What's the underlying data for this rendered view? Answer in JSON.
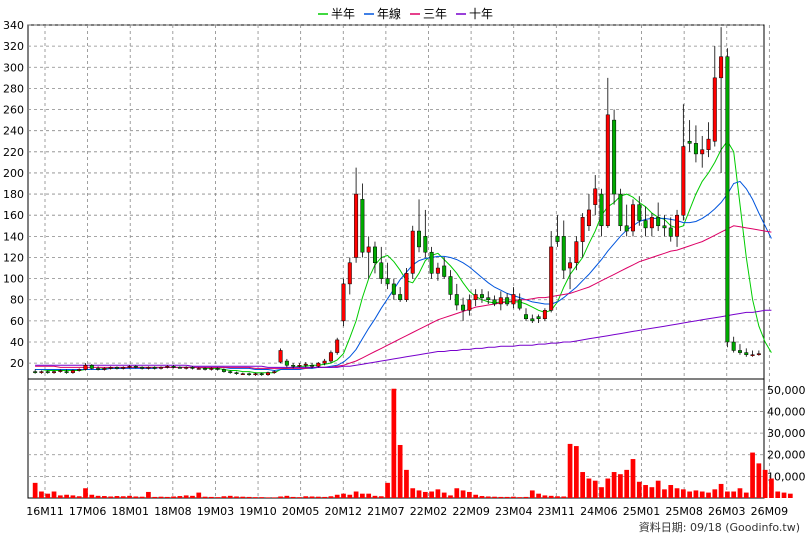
{
  "legend": [
    {
      "label": "半年",
      "color": "#00cc00"
    },
    {
      "label": "年線",
      "color": "#0055dd"
    },
    {
      "label": "三年",
      "color": "#dd0066"
    },
    {
      "label": "十年",
      "color": "#7700cc"
    }
  ],
  "footer": "資料日期: 09/18  (Goodinfo.tw)",
  "colors": {
    "up": "#ff0000",
    "down": "#00aa00",
    "grid": "#888888",
    "volume": "#ff0000"
  },
  "chart_data": {
    "type": "candlestick",
    "x_tick_labels": [
      "16M11",
      "17M06",
      "18M01",
      "18M08",
      "19M03",
      "19M10",
      "20M05",
      "20M12",
      "21M07",
      "22M02",
      "22M09",
      "23M04",
      "23M11",
      "24M06",
      "25M01",
      "25M08",
      "26M03",
      "26M09"
    ],
    "price_ylim": [
      5,
      340
    ],
    "price_y_ticks": [
      20,
      40,
      60,
      80,
      100,
      120,
      140,
      160,
      180,
      200,
      220,
      240,
      260,
      280,
      300,
      320,
      340
    ],
    "volume_ylim": [
      0,
      55000
    ],
    "volume_y_ticks": [
      "10,000",
      "20,000",
      "30,000",
      "40,000",
      "50,000"
    ],
    "volume_y_tick_values": [
      10000,
      20000,
      30000,
      40000,
      50000
    ],
    "candles": [
      {
        "o": 12,
        "h": 14,
        "l": 10,
        "c": 11
      },
      {
        "o": 11,
        "h": 13,
        "l": 10,
        "c": 12
      },
      {
        "o": 12,
        "h": 13,
        "l": 10,
        "c": 11
      },
      {
        "o": 11,
        "h": 13,
        "l": 10,
        "c": 12
      },
      {
        "o": 12,
        "h": 14,
        "l": 11,
        "c": 13
      },
      {
        "o": 12,
        "h": 14,
        "l": 10,
        "c": 11
      },
      {
        "o": 11,
        "h": 14,
        "l": 10,
        "c": 13
      },
      {
        "o": 13,
        "h": 15,
        "l": 12,
        "c": 14
      },
      {
        "o": 14,
        "h": 20,
        "l": 13,
        "c": 18
      },
      {
        "o": 18,
        "h": 19,
        "l": 14,
        "c": 15
      },
      {
        "o": 15,
        "h": 17,
        "l": 13,
        "c": 14
      },
      {
        "o": 14,
        "h": 16,
        "l": 13,
        "c": 15
      },
      {
        "o": 15,
        "h": 17,
        "l": 14,
        "c": 16
      },
      {
        "o": 16,
        "h": 17,
        "l": 14,
        "c": 15
      },
      {
        "o": 15,
        "h": 17,
        "l": 14,
        "c": 16
      },
      {
        "o": 16,
        "h": 18,
        "l": 15,
        "c": 17
      },
      {
        "o": 17,
        "h": 18,
        "l": 15,
        "c": 16
      },
      {
        "o": 16,
        "h": 17,
        "l": 14,
        "c": 15
      },
      {
        "o": 15,
        "h": 17,
        "l": 14,
        "c": 16
      },
      {
        "o": 16,
        "h": 17,
        "l": 14,
        "c": 15
      },
      {
        "o": 15,
        "h": 17,
        "l": 14,
        "c": 16
      },
      {
        "o": 16,
        "h": 18,
        "l": 15,
        "c": 17
      },
      {
        "o": 17,
        "h": 18,
        "l": 15,
        "c": 16
      },
      {
        "o": 16,
        "h": 17,
        "l": 15,
        "c": 15
      },
      {
        "o": 15,
        "h": 17,
        "l": 14,
        "c": 16
      },
      {
        "o": 16,
        "h": 17,
        "l": 14,
        "c": 15
      },
      {
        "o": 15,
        "h": 16,
        "l": 14,
        "c": 15
      },
      {
        "o": 15,
        "h": 16,
        "l": 13,
        "c": 14
      },
      {
        "o": 14,
        "h": 16,
        "l": 13,
        "c": 15
      },
      {
        "o": 15,
        "h": 16,
        "l": 13,
        "c": 14
      },
      {
        "o": 14,
        "h": 15,
        "l": 11,
        "c": 12
      },
      {
        "o": 12,
        "h": 13,
        "l": 10,
        "c": 11
      },
      {
        "o": 11,
        "h": 12,
        "l": 9,
        "c": 10
      },
      {
        "o": 10,
        "h": 11,
        "l": 9,
        "c": 10
      },
      {
        "o": 10,
        "h": 11,
        "l": 8,
        "c": 9
      },
      {
        "o": 9,
        "h": 11,
        "l": 8,
        "c": 10
      },
      {
        "o": 10,
        "h": 11,
        "l": 8,
        "c": 9
      },
      {
        "o": 9,
        "h": 12,
        "l": 8,
        "c": 11
      },
      {
        "o": 11,
        "h": 13,
        "l": 10,
        "c": 12
      },
      {
        "o": 21,
        "h": 34,
        "l": 20,
        "c": 32
      },
      {
        "o": 22,
        "h": 24,
        "l": 16,
        "c": 18
      },
      {
        "o": 18,
        "h": 20,
        "l": 15,
        "c": 17
      },
      {
        "o": 17,
        "h": 20,
        "l": 16,
        "c": 18
      },
      {
        "o": 18,
        "h": 21,
        "l": 16,
        "c": 19
      },
      {
        "o": 18,
        "h": 20,
        "l": 15,
        "c": 17
      },
      {
        "o": 17,
        "h": 21,
        "l": 16,
        "c": 20
      },
      {
        "o": 20,
        "h": 24,
        "l": 18,
        "c": 22
      },
      {
        "o": 22,
        "h": 32,
        "l": 20,
        "c": 30
      },
      {
        "o": 30,
        "h": 44,
        "l": 28,
        "c": 42
      },
      {
        "o": 60,
        "h": 100,
        "l": 55,
        "c": 95
      },
      {
        "o": 95,
        "h": 120,
        "l": 85,
        "c": 115
      },
      {
        "o": 120,
        "h": 205,
        "l": 115,
        "c": 180
      },
      {
        "o": 175,
        "h": 190,
        "l": 120,
        "c": 125
      },
      {
        "o": 125,
        "h": 140,
        "l": 100,
        "c": 130
      },
      {
        "o": 130,
        "h": 135,
        "l": 105,
        "c": 115
      },
      {
        "o": 115,
        "h": 130,
        "l": 95,
        "c": 100
      },
      {
        "o": 100,
        "h": 115,
        "l": 90,
        "c": 95
      },
      {
        "o": 95,
        "h": 100,
        "l": 80,
        "c": 85
      },
      {
        "o": 85,
        "h": 92,
        "l": 78,
        "c": 80
      },
      {
        "o": 80,
        "h": 110,
        "l": 78,
        "c": 105
      },
      {
        "o": 105,
        "h": 150,
        "l": 100,
        "c": 145
      },
      {
        "o": 145,
        "h": 175,
        "l": 125,
        "c": 130
      },
      {
        "o": 140,
        "h": 165,
        "l": 120,
        "c": 125
      },
      {
        "o": 125,
        "h": 130,
        "l": 100,
        "c": 105
      },
      {
        "o": 105,
        "h": 115,
        "l": 98,
        "c": 110
      },
      {
        "o": 112,
        "h": 120,
        "l": 100,
        "c": 102
      },
      {
        "o": 102,
        "h": 108,
        "l": 80,
        "c": 85
      },
      {
        "o": 85,
        "h": 95,
        "l": 70,
        "c": 75
      },
      {
        "o": 75,
        "h": 82,
        "l": 60,
        "c": 70
      },
      {
        "o": 70,
        "h": 85,
        "l": 65,
        "c": 80
      },
      {
        "o": 80,
        "h": 90,
        "l": 74,
        "c": 85
      },
      {
        "o": 85,
        "h": 90,
        "l": 77,
        "c": 82
      },
      {
        "o": 82,
        "h": 88,
        "l": 76,
        "c": 80
      },
      {
        "o": 80,
        "h": 84,
        "l": 74,
        "c": 76
      },
      {
        "o": 76,
        "h": 88,
        "l": 70,
        "c": 82
      },
      {
        "o": 82,
        "h": 86,
        "l": 74,
        "c": 76
      },
      {
        "o": 76,
        "h": 92,
        "l": 72,
        "c": 85
      },
      {
        "o": 80,
        "h": 86,
        "l": 70,
        "c": 72
      },
      {
        "o": 66,
        "h": 72,
        "l": 60,
        "c": 62
      },
      {
        "o": 62,
        "h": 66,
        "l": 58,
        "c": 60
      },
      {
        "o": 64,
        "h": 66,
        "l": 58,
        "c": 62
      },
      {
        "o": 62,
        "h": 72,
        "l": 60,
        "c": 70
      },
      {
        "o": 70,
        "h": 145,
        "l": 68,
        "c": 130
      },
      {
        "o": 140,
        "h": 160,
        "l": 130,
        "c": 135
      },
      {
        "o": 140,
        "h": 155,
        "l": 100,
        "c": 108
      },
      {
        "o": 110,
        "h": 120,
        "l": 90,
        "c": 115
      },
      {
        "o": 115,
        "h": 140,
        "l": 108,
        "c": 135
      },
      {
        "o": 135,
        "h": 162,
        "l": 120,
        "c": 158
      },
      {
        "o": 150,
        "h": 180,
        "l": 145,
        "c": 165
      },
      {
        "o": 170,
        "h": 198,
        "l": 160,
        "c": 185
      },
      {
        "o": 180,
        "h": 185,
        "l": 140,
        "c": 150
      },
      {
        "o": 150,
        "h": 290,
        "l": 148,
        "c": 255
      },
      {
        "o": 250,
        "h": 260,
        "l": 170,
        "c": 180
      },
      {
        "o": 180,
        "h": 185,
        "l": 145,
        "c": 150
      },
      {
        "o": 150,
        "h": 170,
        "l": 140,
        "c": 145
      },
      {
        "o": 145,
        "h": 175,
        "l": 140,
        "c": 170
      },
      {
        "o": 170,
        "h": 178,
        "l": 150,
        "c": 155
      },
      {
        "o": 155,
        "h": 168,
        "l": 140,
        "c": 148
      },
      {
        "o": 148,
        "h": 162,
        "l": 140,
        "c": 158
      },
      {
        "o": 158,
        "h": 172,
        "l": 145,
        "c": 150
      },
      {
        "o": 150,
        "h": 160,
        "l": 140,
        "c": 148
      },
      {
        "o": 148,
        "h": 158,
        "l": 135,
        "c": 140
      },
      {
        "o": 140,
        "h": 165,
        "l": 130,
        "c": 160
      },
      {
        "o": 160,
        "h": 265,
        "l": 155,
        "c": 225
      },
      {
        "o": 230,
        "h": 250,
        "l": 220,
        "c": 228
      },
      {
        "o": 228,
        "h": 245,
        "l": 210,
        "c": 218
      },
      {
        "o": 218,
        "h": 235,
        "l": 205,
        "c": 222
      },
      {
        "o": 222,
        "h": 248,
        "l": 215,
        "c": 232
      },
      {
        "o": 230,
        "h": 320,
        "l": 225,
        "c": 290
      },
      {
        "o": 290,
        "h": 338,
        "l": 200,
        "c": 310
      },
      {
        "o": 310,
        "h": 318,
        "l": 35,
        "c": 40
      },
      {
        "o": 40,
        "h": 45,
        "l": 30,
        "c": 32
      },
      {
        "o": 32,
        "h": 38,
        "l": 28,
        "c": 30
      },
      {
        "o": 30,
        "h": 34,
        "l": 26,
        "c": 28
      },
      {
        "o": 28,
        "h": 32,
        "l": 26,
        "c": 28
      },
      {
        "o": 28,
        "h": 32,
        "l": 27,
        "c": 29
      }
    ],
    "ma_half_year": [
      14,
      14,
      13,
      13,
      13,
      13,
      13,
      13,
      14,
      14,
      14,
      15,
      15,
      15,
      15,
      16,
      16,
      16,
      16,
      16,
      16,
      16,
      16,
      16,
      16,
      16,
      16,
      15,
      15,
      15,
      14,
      13,
      13,
      12,
      12,
      11,
      11,
      11,
      11,
      14,
      15,
      16,
      17,
      17,
      18,
      18,
      19,
      20,
      23,
      29,
      44,
      60,
      82,
      100,
      113,
      120,
      122,
      116,
      108,
      98,
      96,
      105,
      117,
      122,
      124,
      118,
      112,
      105,
      96,
      88,
      83,
      80,
      78,
      77,
      78,
      78,
      78,
      78,
      76,
      73,
      70,
      68,
      70,
      78,
      92,
      104,
      112,
      120,
      133,
      145,
      160,
      168,
      172,
      178,
      180,
      177,
      172,
      168,
      162,
      158,
      156,
      150,
      148,
      150,
      165,
      180,
      192,
      200,
      210,
      222,
      230,
      220,
      170,
      120,
      80,
      55,
      40,
      30
    ],
    "ma_year": [
      14,
      14,
      14,
      14,
      14,
      14,
      14,
      14,
      14,
      14,
      14,
      14,
      15,
      15,
      15,
      15,
      15,
      15,
      15,
      15,
      16,
      16,
      16,
      16,
      16,
      16,
      16,
      16,
      16,
      16,
      16,
      15,
      15,
      15,
      15,
      14,
      14,
      14,
      13,
      14,
      14,
      14,
      14,
      15,
      15,
      16,
      16,
      17,
      18,
      21,
      26,
      33,
      43,
      53,
      62,
      72,
      81,
      90,
      99,
      106,
      113,
      117,
      119,
      120,
      121,
      121,
      120,
      118,
      115,
      111,
      106,
      101,
      96,
      92,
      89,
      86,
      84,
      82,
      80,
      78,
      77,
      76,
      76,
      78,
      82,
      87,
      92,
      98,
      104,
      111,
      118,
      126,
      133,
      140,
      146,
      150,
      154,
      156,
      157,
      157,
      157,
      156,
      155,
      153,
      153,
      154,
      157,
      161,
      166,
      172,
      180,
      190,
      192,
      185,
      175,
      162,
      150,
      138
    ],
    "ma_three_year": [
      17,
      17,
      17,
      17,
      16,
      16,
      16,
      16,
      16,
      16,
      16,
      16,
      16,
      16,
      16,
      16,
      16,
      16,
      16,
      16,
      16,
      16,
      16,
      16,
      16,
      16,
      16,
      16,
      16,
      16,
      16,
      16,
      16,
      16,
      16,
      15,
      15,
      15,
      15,
      15,
      15,
      15,
      15,
      15,
      16,
      16,
      16,
      16,
      17,
      18,
      20,
      22,
      25,
      28,
      31,
      34,
      37,
      40,
      43,
      46,
      49,
      52,
      55,
      58,
      61,
      63,
      65,
      67,
      69,
      71,
      73,
      74,
      75,
      76,
      77,
      78,
      79,
      80,
      80,
      81,
      82,
      82,
      83,
      84,
      85,
      86,
      88,
      90,
      92,
      95,
      98,
      101,
      104,
      107,
      110,
      113,
      116,
      118,
      120,
      122,
      124,
      126,
      127,
      129,
      131,
      133,
      135,
      138,
      141,
      144,
      147,
      150,
      149,
      148,
      147,
      146,
      145,
      144
    ],
    "ma_ten_year": [
      18,
      18,
      18,
      18,
      18,
      18,
      18,
      18,
      18,
      18,
      18,
      18,
      18,
      18,
      18,
      18,
      18,
      18,
      18,
      18,
      18,
      18,
      18,
      18,
      18,
      17,
      17,
      17,
      17,
      17,
      17,
      17,
      17,
      17,
      17,
      17,
      17,
      16,
      16,
      16,
      16,
      16,
      16,
      16,
      16,
      16,
      16,
      16,
      16,
      17,
      17,
      18,
      19,
      20,
      21,
      22,
      23,
      24,
      25,
      26,
      27,
      28,
      29,
      30,
      31,
      31,
      32,
      32,
      33,
      33,
      34,
      34,
      35,
      35,
      36,
      36,
      36,
      37,
      37,
      37,
      38,
      38,
      39,
      39,
      40,
      40,
      41,
      42,
      43,
      44,
      45,
      46,
      47,
      48,
      49,
      50,
      51,
      52,
      53,
      54,
      55,
      56,
      57,
      58,
      59,
      60,
      61,
      62,
      63,
      64,
      65,
      66,
      67,
      68,
      68,
      69,
      70,
      70
    ],
    "volumes": [
      7000,
      3000,
      2000,
      3000,
      1200,
      1500,
      1200,
      800,
      4500,
      1500,
      1000,
      900,
      700,
      900,
      800,
      1000,
      700,
      600,
      2800,
      500,
      600,
      500,
      700,
      900,
      1200,
      1000,
      2500,
      600,
      500,
      400,
      800,
      1000,
      700,
      600,
      500,
      400,
      400,
      300,
      300,
      700,
      1000,
      500,
      400,
      800,
      700,
      600,
      500,
      800,
      1500,
      2000,
      1500,
      3000,
      2000,
      2000,
      1000,
      800,
      7000,
      50500,
      24500,
      13000,
      4500,
      3500,
      2800,
      3000,
      4000,
      2500,
      1200,
      4500,
      3500,
      2800,
      1500,
      900,
      700,
      600,
      500,
      500,
      600,
      400,
      500,
      3500,
      2000,
      1200,
      1000,
      800,
      700,
      25000,
      24000,
      12000,
      9000,
      8000,
      5000,
      9000,
      12000,
      11000,
      13000,
      18000,
      7500,
      6000,
      5000,
      8000,
      4000,
      6000,
      4500,
      4000,
      3000,
      3500,
      3000,
      2500,
      4000,
      6500,
      3000,
      3000,
      4500,
      2500,
      21000,
      16000,
      13000,
      9000,
      3000,
      2500,
      2000
    ]
  }
}
